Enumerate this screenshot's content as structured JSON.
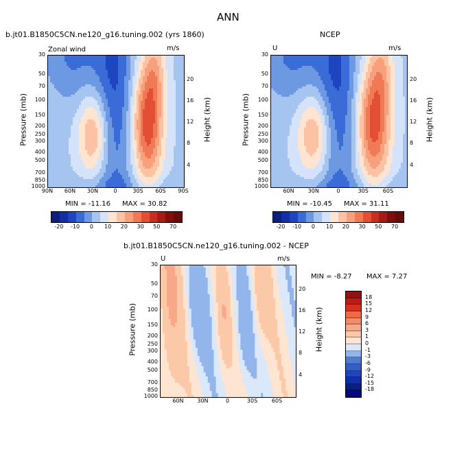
{
  "page": {
    "title": "ANN",
    "diff_title": "b.jt01.B1850C5CN.ne120_g16.tuning.002 - NCEP"
  },
  "colors": {
    "pos": [
      "#fde5d2",
      "#fbc8a8",
      "#f8a886",
      "#f48a66",
      "#ef6a46",
      "#e84a2e",
      "#d6301f",
      "#b81d17",
      "#94110f"
    ],
    "neg": [
      "#dbe8fa",
      "#b8d0f4",
      "#92b5ec",
      "#6c99e2",
      "#4a7cd8",
      "#2f60cd",
      "#1d45bf",
      "#1230a6",
      "#0a1f80"
    ]
  },
  "chart_data": [
    {
      "type": "contour",
      "id": "model",
      "header_left": "b.jt01.B1850C5CN.ne120_g16.tuning.002 (yrs 1860)",
      "var_label": "Zonal wind",
      "units": "m/s",
      "ylabel": "Pressure (mb)",
      "ylabel2": "Height (km)",
      "pressure_ticks": [
        "30",
        "50",
        "70",
        "100",
        "150",
        "200",
        "250",
        "300",
        "400",
        "500",
        "700",
        "850",
        "1000"
      ],
      "pressure_values": [
        30,
        50,
        70,
        100,
        150,
        200,
        250,
        300,
        400,
        500,
        700,
        850,
        1000
      ],
      "height_ticks": [
        "20",
        "16",
        "12",
        "8",
        "4"
      ],
      "height_values": [
        20,
        16,
        12,
        8,
        4
      ],
      "lat_ticks": [
        "90N",
        "60N",
        "30N",
        "0",
        "30S",
        "60S",
        "90S"
      ],
      "lat_values": [
        90,
        60,
        30,
        0,
        -30,
        -60,
        -90
      ],
      "xlim": [
        90,
        -90
      ],
      "min_label": "MIN = -11.16",
      "max_label": "MAX = 30.82",
      "min": -11.16,
      "max": 30.82
    },
    {
      "type": "contour",
      "id": "ncep",
      "header_left": "NCEP",
      "var_label": "U",
      "units": "m/s",
      "ylabel": "Pressure (mb)",
      "ylabel2": "Height (km)",
      "pressure_ticks": [
        "30",
        "50",
        "70",
        "100",
        "150",
        "200",
        "250",
        "300",
        "400",
        "500",
        "700",
        "850",
        "1000"
      ],
      "pressure_values": [
        30,
        50,
        70,
        100,
        150,
        200,
        250,
        300,
        400,
        500,
        700,
        850,
        1000
      ],
      "height_ticks": [
        "20",
        "16",
        "12",
        "8",
        "4"
      ],
      "height_values": [
        20,
        16,
        12,
        8,
        4
      ],
      "lat_ticks": [
        "60N",
        "30N",
        "0",
        "30S",
        "60S"
      ],
      "lat_values": [
        60,
        30,
        0,
        -30,
        -60
      ],
      "xlim": [
        82,
        -82
      ],
      "min_label": "MIN = -10.45",
      "max_label": "MAX = 31.11",
      "min": -10.45,
      "max": 31.11
    },
    {
      "type": "contour",
      "id": "diff",
      "var_label": "U",
      "units": "m/s",
      "ylabel": "Pressure (mb)",
      "ylabel2": "Height (km)",
      "pressure_ticks": [
        "30",
        "50",
        "70",
        "100",
        "150",
        "200",
        "250",
        "300",
        "400",
        "500",
        "700",
        "850",
        "1000"
      ],
      "pressure_values": [
        30,
        50,
        70,
        100,
        150,
        200,
        250,
        300,
        400,
        500,
        700,
        850,
        1000
      ],
      "height_ticks": [
        "20",
        "16",
        "12",
        "8",
        "4"
      ],
      "height_values": [
        20,
        16,
        12,
        8,
        4
      ],
      "lat_ticks": [
        "60N",
        "30N",
        "0",
        "30S",
        "60S"
      ],
      "lat_values": [
        60,
        30,
        0,
        -30,
        -60
      ],
      "xlim": [
        82,
        -82
      ],
      "min_label": "MIN = -8.27",
      "max_label": "MAX = 7.27",
      "min": -8.27,
      "max": 7.27
    }
  ],
  "colorbar_main": {
    "labels": [
      "-20",
      "-10",
      "0",
      "10",
      "20",
      "30",
      "50",
      "70"
    ],
    "levels": [
      -20,
      -15,
      -10,
      -5,
      0,
      5,
      10,
      15,
      20,
      25,
      30,
      40,
      50,
      60,
      70
    ]
  },
  "colorbar_diff": {
    "labels": [
      "18",
      "15",
      "12",
      "9",
      "6",
      "3",
      "1",
      "0",
      "-1",
      "-3",
      "-6",
      "-9",
      "-12",
      "-15",
      "-18"
    ]
  }
}
